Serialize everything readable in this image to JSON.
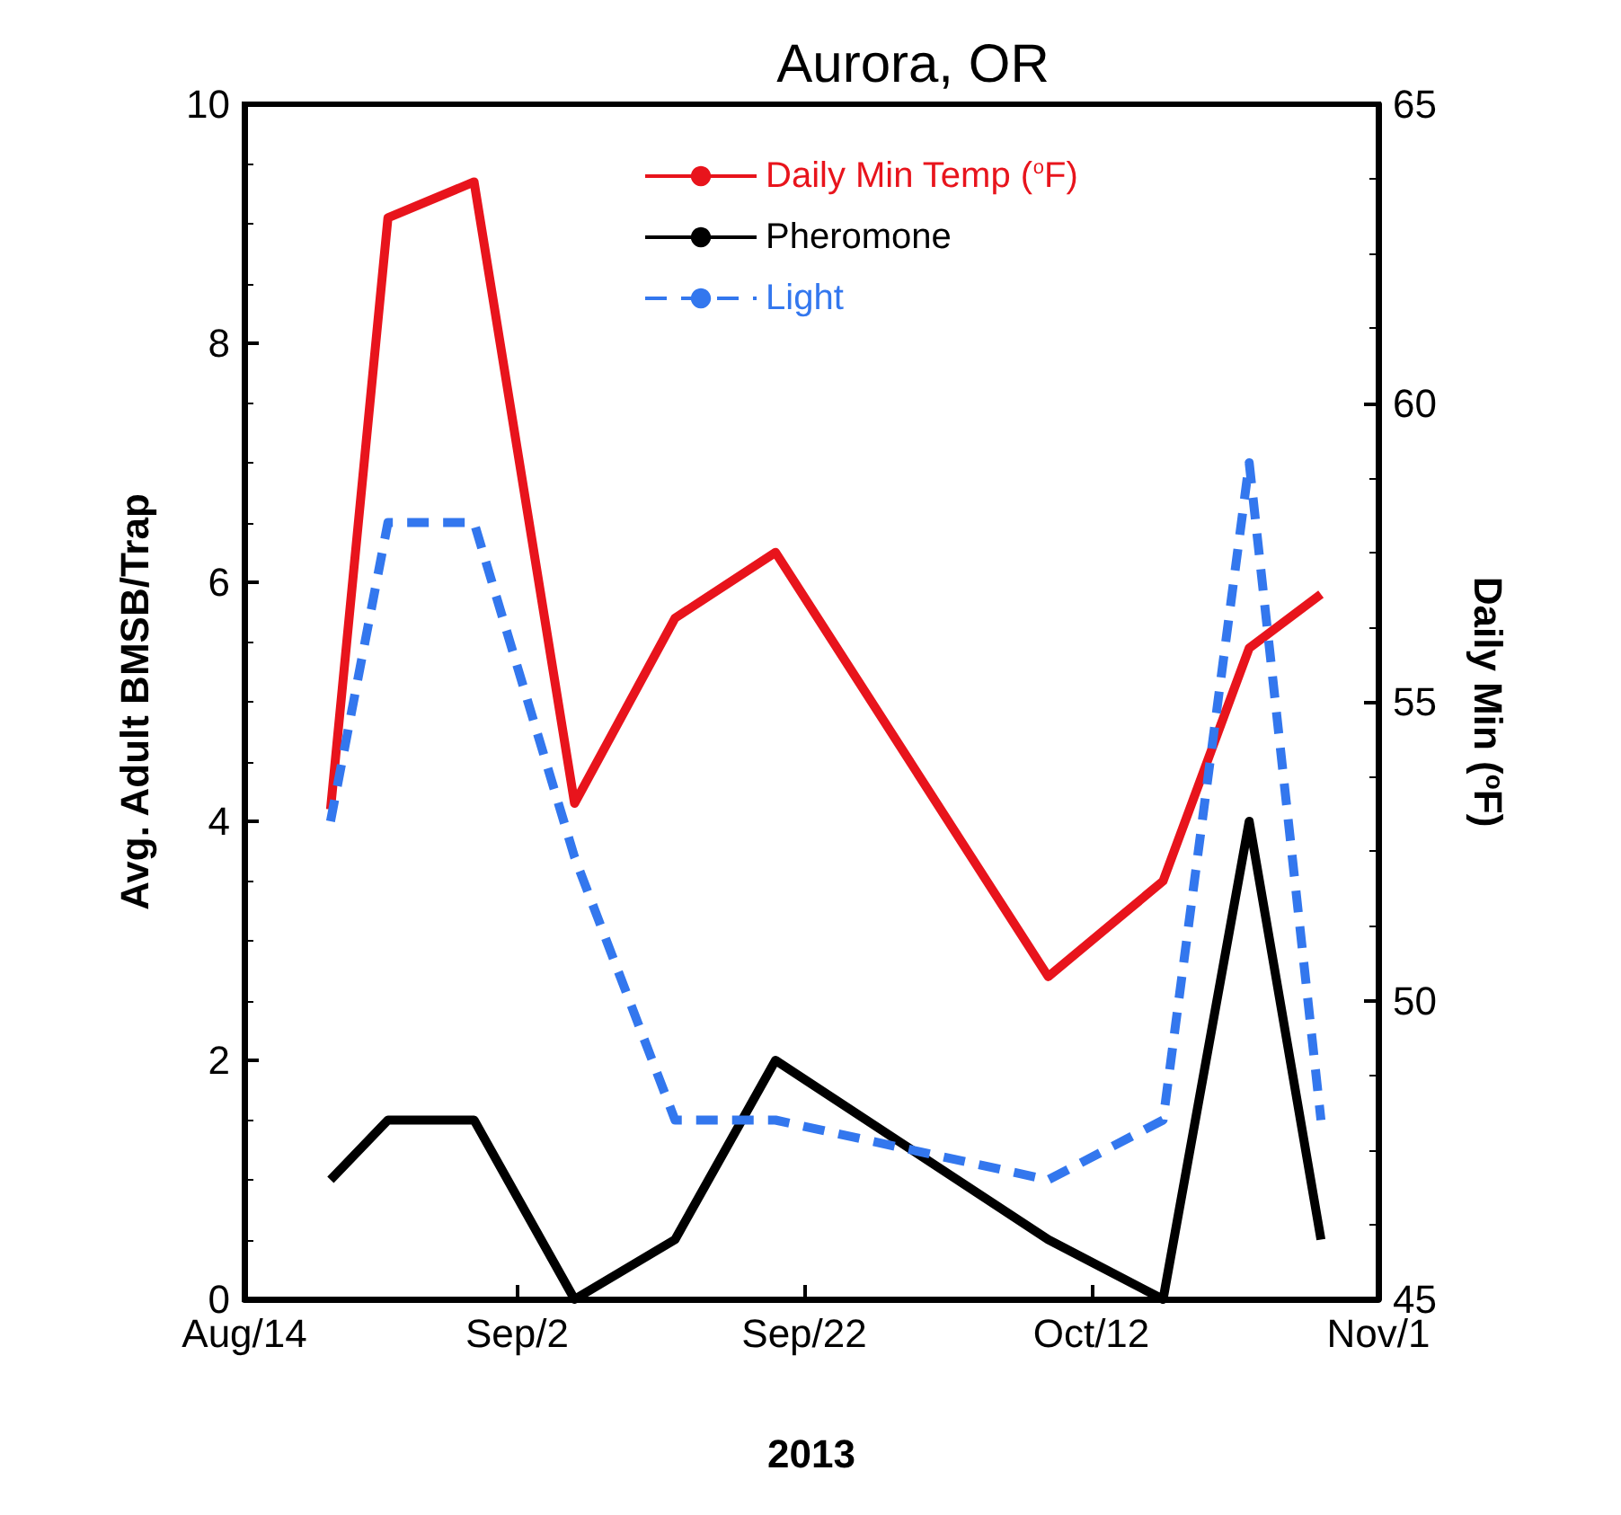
{
  "chart_data": {
    "type": "line",
    "title": "Aurora, OR",
    "xlabel": "2013",
    "ylabel": "Avg. Adult BMSB/Trap",
    "y2label": "Daily Min ($^{o}$F)",
    "x": [
      "2013-08-20",
      "2013-08-24",
      "2013-08-30",
      "2013-09-06",
      "2013-09-13",
      "2013-09-20",
      "2013-10-09",
      "2013-10-17",
      "2013-10-23",
      "2013-10-28"
    ],
    "series": [
      {
        "name": "Daily Min Temp ($^{o}$F)",
        "color": "#e8141c",
        "axis": "y2",
        "line_style": "solid",
        "values": [
          53.2,
          63.1,
          63.7,
          53.3,
          56.4,
          57.5,
          50.4,
          52.0,
          55.9,
          56.8
        ]
      },
      {
        "name": "Pheromone",
        "color": "#000000",
        "line_style": "solid",
        "values": [
          1,
          1.5,
          1.5,
          0,
          0.5,
          2,
          0.5,
          0,
          4,
          0.5
        ]
      },
      {
        "name": "Light",
        "color": "#3377ee",
        "line_style": "dashed",
        "values": [
          4.0,
          6.5,
          6.5,
          3.7,
          1.5,
          1.5,
          1.0,
          1.5,
          7.0,
          1.5
        ]
      }
    ],
    "xlim": [
      "2013-08-14",
      "2013-11-01"
    ],
    "xticks": [
      {
        "value": "2013-08-14",
        "label": "Aug/14"
      },
      {
        "value": "2013-09-02",
        "label": "Sep/2"
      },
      {
        "value": "2013-09-22",
        "label": "Sep/22"
      },
      {
        "value": "2013-10-12",
        "label": "Oct/12"
      },
      {
        "value": "2013-11-01",
        "label": "Nov/1"
      }
    ],
    "ylim": [
      0,
      10
    ],
    "yticks": [
      0,
      2,
      4,
      6,
      8,
      10
    ],
    "y2lim": [
      45,
      65
    ],
    "y2ticks": [
      45,
      50,
      55,
      60,
      65
    ],
    "grid": false,
    "legend": "top",
    "marker": "none"
  }
}
